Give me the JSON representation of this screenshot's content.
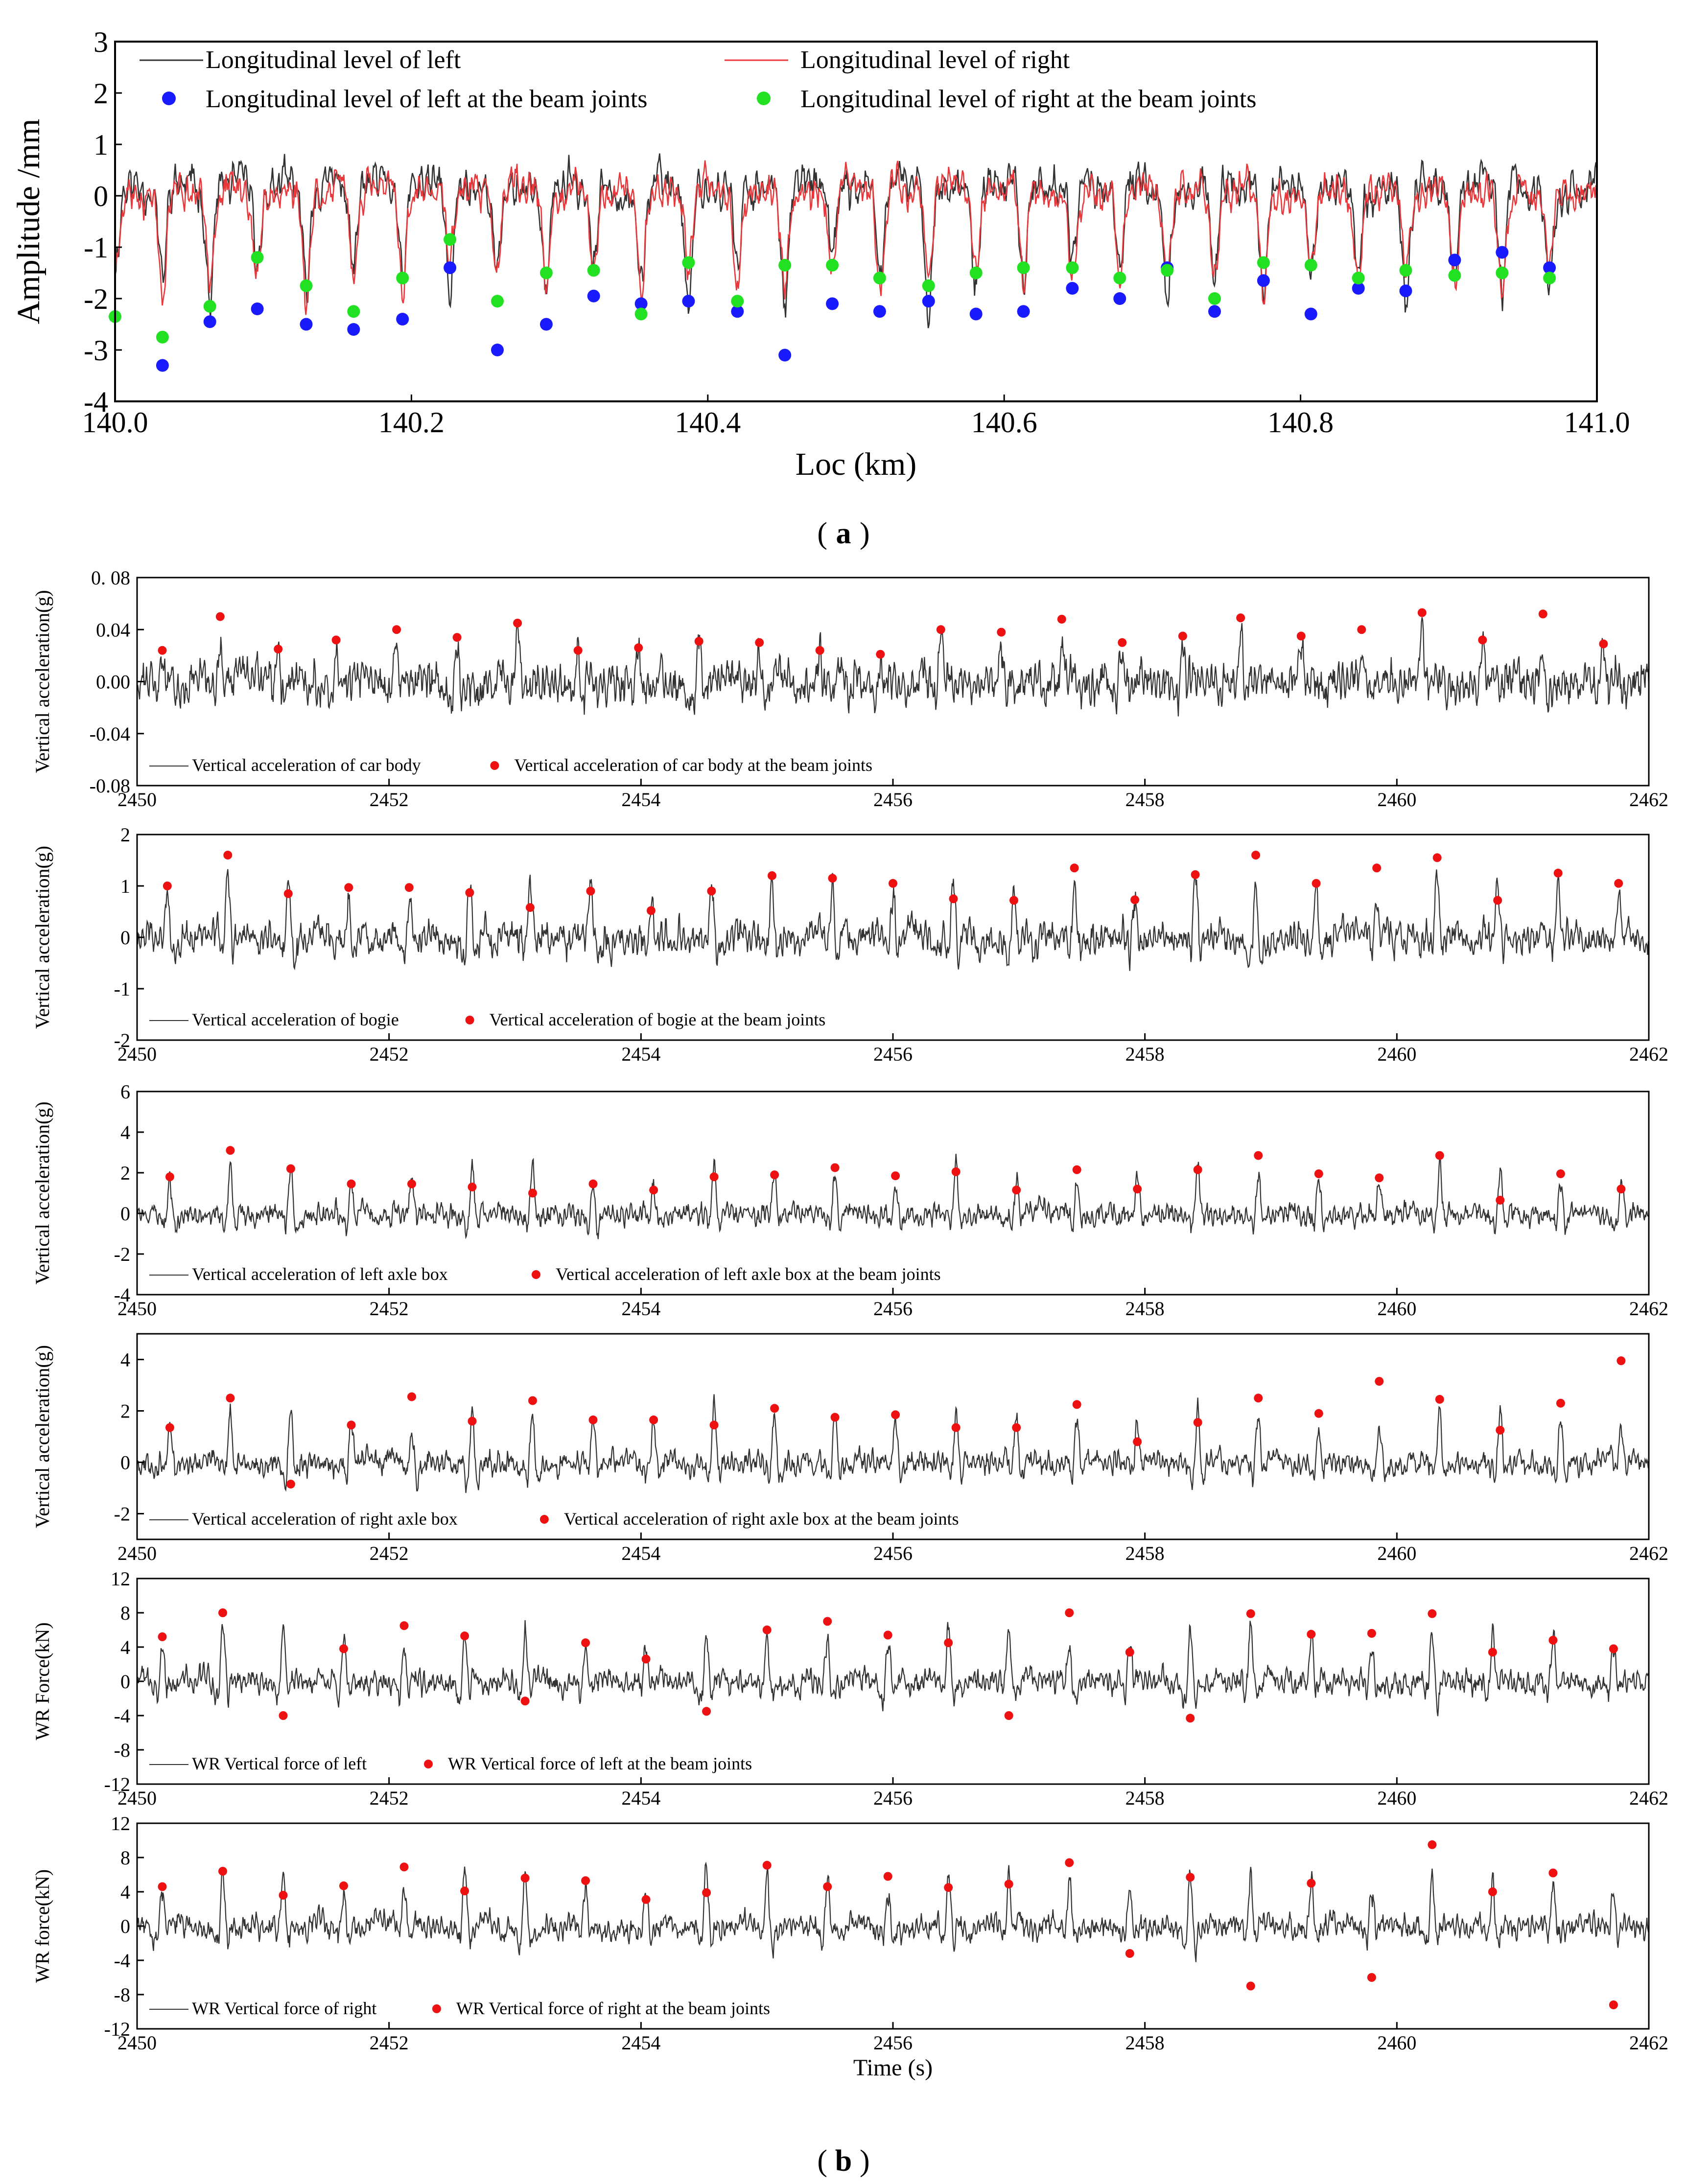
{
  "colors": {
    "signal": "#333333",
    "left_line": "#333333",
    "right_line": "#e8383b",
    "left_dots": "#1a1aff",
    "right_dots": "#22e022",
    "beam_dots": "#ee1111",
    "axis": "#000000"
  },
  "panel_labels": {
    "a": "a",
    "b": "b"
  },
  "chart_data": [
    {
      "id": "a",
      "type": "line",
      "xlabel": "Loc (km)",
      "ylabel": "Amplitude /mm",
      "xlim": [
        140.0,
        141.0
      ],
      "ylim": [
        -4,
        3
      ],
      "xticks": [
        "140.0",
        "140.2",
        "140.4",
        "140.6",
        "140.8",
        "141.0"
      ],
      "xtick_values": [
        140.0,
        140.2,
        140.4,
        140.6,
        140.8,
        141.0
      ],
      "yticks": [
        "3",
        "2",
        "1",
        "0",
        "-1",
        "-2",
        "-3",
        "-4"
      ],
      "ytick_values": [
        3,
        2,
        1,
        0,
        -1,
        -2,
        -3,
        -4
      ],
      "legend_location": "top",
      "series": [
        {
          "name": "Longitudinal level of left",
          "kind": "line",
          "color_key": "left_line",
          "base": 0.2,
          "noise": 0.45,
          "dip": -2.0,
          "seed": 11
        },
        {
          "name": "Longitudinal level of right",
          "kind": "line",
          "color_key": "right_line",
          "base": 0.1,
          "noise": 0.4,
          "dip": -1.8,
          "seed": 23
        },
        {
          "name": "Longitudinal level of left at the beam joints",
          "kind": "points",
          "color_key": "left_dots",
          "x": [
            140.032,
            140.064,
            140.096,
            140.129,
            140.161,
            140.194,
            140.226,
            140.258,
            140.291,
            140.323,
            140.355,
            140.387,
            140.42,
            140.452,
            140.484,
            140.516,
            140.549,
            140.581,
            140.613,
            140.646,
            140.678,
            140.71,
            140.742,
            140.775,
            140.807,
            140.839,
            140.871,
            140.904,
            140.936,
            140.968
          ],
          "y": [
            -3.3,
            -2.45,
            -2.2,
            -2.5,
            -2.6,
            -2.4,
            -1.4,
            -3.0,
            -2.5,
            -1.95,
            -2.1,
            -2.05,
            -2.25,
            -3.1,
            -2.1,
            -2.25,
            -2.05,
            -2.3,
            -2.25,
            -1.8,
            -2.0,
            -1.4,
            -2.25,
            -1.65,
            -2.3,
            -1.8,
            -1.85,
            -1.25,
            -1.1,
            -1.4
          ]
        },
        {
          "name": "Longitudinal level of right at the beam joints",
          "kind": "points",
          "color_key": "right_dots",
          "x": [
            140.0,
            140.032,
            140.064,
            140.096,
            140.129,
            140.161,
            140.194,
            140.226,
            140.258,
            140.291,
            140.323,
            140.355,
            140.387,
            140.42,
            140.452,
            140.484,
            140.516,
            140.549,
            140.581,
            140.613,
            140.646,
            140.678,
            140.71,
            140.742,
            140.775,
            140.807,
            140.839,
            140.871,
            140.904,
            140.936,
            140.968
          ],
          "y": [
            -2.35,
            -2.75,
            -2.15,
            -1.2,
            -1.75,
            -2.25,
            -1.6,
            -0.85,
            -2.05,
            -1.5,
            -1.45,
            -2.3,
            -1.3,
            -2.05,
            -1.35,
            -1.35,
            -1.6,
            -1.75,
            -1.5,
            -1.4,
            -1.4,
            -1.6,
            -1.45,
            -2.0,
            -1.3,
            -1.35,
            -1.6,
            -1.45,
            -1.55,
            -1.5,
            -1.6
          ]
        }
      ]
    },
    {
      "id": "b1",
      "type": "line",
      "xlabel": "",
      "ylabel": "Vertical acceleration(g)",
      "xlim": [
        2450,
        2462
      ],
      "ylim": [
        -0.08,
        0.08
      ],
      "xticks": [
        "2450",
        "2452",
        "2454",
        "2456",
        "2458",
        "2460",
        "2462"
      ],
      "xtick_values": [
        2450,
        2452,
        2454,
        2456,
        2458,
        2460,
        2462
      ],
      "yticks": [
        "0. 08",
        "0.04",
        "0.00",
        "-0.04",
        "-0.08"
      ],
      "ytick_values": [
        0.08,
        0.04,
        0.0,
        -0.04,
        -0.08
      ],
      "legend_location": "bottom-left",
      "series": [
        {
          "name": "Vertical acceleration of car body",
          "kind": "line",
          "color_key": "signal",
          "base": 0.0,
          "noise": 0.018,
          "spike": 0.03,
          "seed": 31
        },
        {
          "name": "Vertical acceleration of car body at the beam joints",
          "kind": "points",
          "color_key": "beam_dots",
          "x": [
            2450.2,
            2450.66,
            2451.12,
            2451.58,
            2452.06,
            2452.54,
            2453.02,
            2453.5,
            2453.98,
            2454.46,
            2454.94,
            2455.42,
            2455.9,
            2456.38,
            2456.86,
            2457.34,
            2457.82,
            2458.3,
            2458.76,
            2459.24,
            2459.72,
            2460.2,
            2460.68,
            2461.16,
            2461.64
          ],
          "y": [
            0.024,
            0.05,
            0.025,
            0.032,
            0.04,
            0.034,
            0.045,
            0.024,
            0.026,
            0.031,
            0.03,
            0.024,
            0.021,
            0.04,
            0.038,
            0.048,
            0.03,
            0.035,
            0.049,
            0.035,
            0.04,
            0.053,
            0.032,
            0.052,
            0.029
          ]
        }
      ]
    },
    {
      "id": "b2",
      "type": "line",
      "xlabel": "",
      "ylabel": "Vertical acceleration(g)",
      "xlim": [
        2450,
        2462
      ],
      "ylim": [
        -2,
        2
      ],
      "xticks": [
        "2450",
        "2452",
        "2454",
        "2456",
        "2458",
        "2460",
        "2462"
      ],
      "xtick_values": [
        2450,
        2452,
        2454,
        2456,
        2458,
        2460,
        2462
      ],
      "yticks": [
        "2",
        "1",
        "0",
        "-1",
        "-2"
      ],
      "ytick_values": [
        2,
        1,
        0,
        -1,
        -2
      ],
      "legend_location": "bottom-left",
      "series": [
        {
          "name": "Vertical acceleration of bogie",
          "kind": "line",
          "color_key": "signal",
          "base": 0.0,
          "noise": 0.35,
          "spike": 1.1,
          "seed": 47
        },
        {
          "name": "Vertical acceleration of bogie at the beam joints",
          "kind": "points",
          "color_key": "beam_dots",
          "x": [
            2450.24,
            2450.72,
            2451.2,
            2451.68,
            2452.16,
            2452.64,
            2453.12,
            2453.6,
            2454.08,
            2454.56,
            2455.04,
            2455.52,
            2456.0,
            2456.48,
            2456.96,
            2457.44,
            2457.92,
            2458.4,
            2458.88,
            2459.36,
            2459.84,
            2460.32,
            2460.8,
            2461.28,
            2461.76
          ],
          "y": [
            1.0,
            1.6,
            0.85,
            0.97,
            0.97,
            0.87,
            0.58,
            0.9,
            0.52,
            0.9,
            1.2,
            1.15,
            1.05,
            0.75,
            0.72,
            1.35,
            0.73,
            1.22,
            1.6,
            1.05,
            1.35,
            1.55,
            0.72,
            1.25,
            1.05
          ]
        }
      ]
    },
    {
      "id": "b3",
      "type": "line",
      "xlabel": "",
      "ylabel": "Vertical acceleration(g)",
      "xlim": [
        2450,
        2462
      ],
      "ylim": [
        -4,
        6
      ],
      "xticks": [
        "2450",
        "2452",
        "2454",
        "2456",
        "2458",
        "2460",
        "2462"
      ],
      "xtick_values": [
        2450,
        2452,
        2454,
        2456,
        2458,
        2460,
        2462
      ],
      "yticks": [
        "6",
        "4",
        "2",
        "0",
        "-2",
        "-4"
      ],
      "ytick_values": [
        6,
        4,
        2,
        0,
        -2,
        -4
      ],
      "legend_location": "bottom-left",
      "series": [
        {
          "name": "Vertical acceleration of left axle box",
          "kind": "line",
          "color_key": "signal",
          "base": 0.0,
          "noise": 0.6,
          "spike": 2.2,
          "seed": 59
        },
        {
          "name": "Vertical acceleration of left axle box at the beam joints",
          "kind": "points",
          "color_key": "beam_dots",
          "x": [
            2450.26,
            2450.74,
            2451.22,
            2451.7,
            2452.18,
            2452.66,
            2453.14,
            2453.62,
            2454.1,
            2454.58,
            2455.06,
            2455.54,
            2456.02,
            2456.5,
            2456.98,
            2457.46,
            2457.94,
            2458.42,
            2458.9,
            2459.38,
            2459.86,
            2460.34,
            2460.82,
            2461.3,
            2461.78
          ],
          "y": [
            1.8,
            3.1,
            2.2,
            1.45,
            1.45,
            1.3,
            1.0,
            1.45,
            1.15,
            1.8,
            1.9,
            2.25,
            1.85,
            2.05,
            1.15,
            2.15,
            1.2,
            2.15,
            2.85,
            1.95,
            1.75,
            2.85,
            0.65,
            1.95,
            1.2
          ]
        }
      ]
    },
    {
      "id": "b4",
      "type": "line",
      "xlabel": "",
      "ylabel": "Vertical acceleration(g)",
      "xlim": [
        2450,
        2462
      ],
      "ylim": [
        -3,
        5
      ],
      "xticks": [
        "2450",
        "2452",
        "2454",
        "2456",
        "2458",
        "2460",
        "2462"
      ],
      "xtick_values": [
        2450,
        2452,
        2454,
        2456,
        2458,
        2460,
        2462
      ],
      "yticks": [
        "4",
        "2",
        "0",
        "-2"
      ],
      "ytick_values": [
        4,
        2,
        0,
        -2
      ],
      "legend_location": "bottom-left",
      "series": [
        {
          "name": "Vertical acceleration of right axle box",
          "kind": "line",
          "color_key": "signal",
          "base": 0.0,
          "noise": 0.5,
          "spike": 2.0,
          "seed": 67
        },
        {
          "name": "Vertical acceleration of right axle box at the beam joints",
          "kind": "points",
          "color_key": "beam_dots",
          "x": [
            2450.26,
            2450.74,
            2451.22,
            2451.7,
            2452.18,
            2452.66,
            2453.14,
            2453.62,
            2454.1,
            2454.58,
            2455.06,
            2455.54,
            2456.02,
            2456.5,
            2456.98,
            2457.46,
            2457.94,
            2458.42,
            2458.9,
            2459.38,
            2459.86,
            2460.34,
            2460.82,
            2461.3,
            2461.78
          ],
          "y": [
            1.35,
            2.5,
            -0.85,
            1.45,
            2.55,
            1.6,
            2.4,
            1.65,
            1.65,
            1.45,
            2.1,
            1.75,
            1.85,
            1.35,
            1.35,
            2.25,
            0.8,
            1.55,
            2.5,
            1.9,
            3.15,
            2.45,
            1.25,
            2.3,
            3.95
          ]
        }
      ]
    },
    {
      "id": "b5",
      "type": "line",
      "xlabel": "",
      "ylabel": "WR Force(kN)",
      "xlim": [
        2450,
        2462
      ],
      "ylim": [
        -12,
        12
      ],
      "xticks": [
        "2450",
        "2452",
        "2454",
        "2456",
        "2458",
        "2460",
        "2462"
      ],
      "xtick_values": [
        2450,
        2452,
        2454,
        2456,
        2458,
        2460,
        2462
      ],
      "yticks": [
        "12",
        "8",
        "4",
        "0",
        "-4",
        "-8",
        "-12"
      ],
      "ytick_values": [
        12,
        8,
        4,
        0,
        -4,
        -8,
        -12
      ],
      "legend_location": "bottom-left",
      "series": [
        {
          "name": "WR Vertical force of left",
          "kind": "line",
          "color_key": "signal",
          "base": 0.0,
          "noise": 1.6,
          "spike": 6.0,
          "seed": 73
        },
        {
          "name": "WR Vertical force of left at the beam joints",
          "kind": "points",
          "color_key": "beam_dots",
          "x": [
            2450.2,
            2450.68,
            2451.16,
            2451.64,
            2452.12,
            2452.6,
            2453.08,
            2453.56,
            2454.04,
            2454.52,
            2455.0,
            2455.48,
            2455.96,
            2456.44,
            2456.92,
            2457.4,
            2457.88,
            2458.36,
            2458.84,
            2459.32,
            2459.8,
            2460.28,
            2460.76,
            2461.24,
            2461.72
          ],
          "y": [
            5.2,
            8.0,
            -4.0,
            3.8,
            6.5,
            5.3,
            -2.3,
            4.5,
            2.6,
            -3.5,
            6.0,
            7.0,
            5.4,
            4.5,
            -4.0,
            8.0,
            3.4,
            -4.3,
            7.9,
            5.5,
            5.6,
            7.9,
            3.4,
            4.8,
            3.8
          ]
        }
      ]
    },
    {
      "id": "b6",
      "type": "line",
      "xlabel": "Time (s)",
      "ylabel": "WR force(kN)",
      "xlim": [
        2450,
        2462
      ],
      "ylim": [
        -12,
        12
      ],
      "xticks": [
        "2450",
        "2452",
        "2454",
        "2456",
        "2458",
        "2460",
        "2462"
      ],
      "xtick_values": [
        2450,
        2452,
        2454,
        2456,
        2458,
        2460,
        2462
      ],
      "yticks": [
        "12",
        "8",
        "4",
        "0",
        "-4",
        "-8",
        "-12"
      ],
      "ytick_values": [
        12,
        8,
        4,
        0,
        -4,
        -8,
        -12
      ],
      "legend_location": "bottom-left",
      "series": [
        {
          "name": "WR Vertical force of right",
          "kind": "line",
          "color_key": "signal",
          "base": 0.0,
          "noise": 1.6,
          "spike": 6.0,
          "seed": 83
        },
        {
          "name": "WR Vertical force of right at the beam joints",
          "kind": "points",
          "color_key": "beam_dots",
          "x": [
            2450.2,
            2450.68,
            2451.16,
            2451.64,
            2452.12,
            2452.6,
            2453.08,
            2453.56,
            2454.04,
            2454.52,
            2455.0,
            2455.48,
            2455.96,
            2456.44,
            2456.92,
            2457.4,
            2457.88,
            2458.36,
            2458.84,
            2459.32,
            2459.8,
            2460.28,
            2460.76,
            2461.24,
            2461.72
          ],
          "y": [
            4.6,
            6.4,
            3.6,
            4.7,
            6.9,
            4.1,
            5.6,
            5.3,
            3.1,
            3.9,
            7.1,
            4.6,
            5.8,
            4.5,
            4.9,
            7.4,
            -3.2,
            5.7,
            -7.0,
            5.0,
            -6.0,
            9.5,
            4.0,
            6.2,
            -9.2
          ]
        }
      ]
    }
  ]
}
